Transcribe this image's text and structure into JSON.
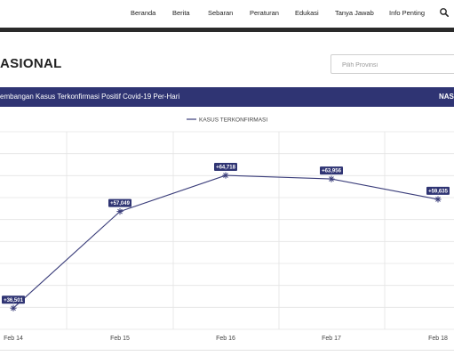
{
  "nav": {
    "items": [
      "Beranda",
      "Berita",
      "Sebaran",
      "Peraturan",
      "Edukasi",
      "Tanya Jawab",
      "Info Penting"
    ]
  },
  "page": {
    "title": "ASIONAL",
    "province_placeholder": "Pilih Provinsi"
  },
  "chart_header": {
    "title": "embangan Kasus Terkonfirmasi Positif Covid-19 Per-Hari",
    "scope": "NAS"
  },
  "colors": {
    "navy": "#2f3473",
    "line": "#3a3d7a"
  },
  "chart_data": {
    "type": "line",
    "categories": [
      "Feb 14",
      "Feb 15",
      "Feb 16",
      "Feb 17",
      "Feb 18"
    ],
    "series": [
      {
        "name": "KASUS TERKONFIRMASI",
        "values": [
          36501,
          57049,
          64718,
          63956,
          59635
        ],
        "labels": [
          "+36,501",
          "+57,049",
          "+64,718",
          "+63,956",
          "+59,635"
        ]
      }
    ],
    "ylim": [
      32000,
      74000
    ],
    "grid": true,
    "legend": "top-center"
  }
}
